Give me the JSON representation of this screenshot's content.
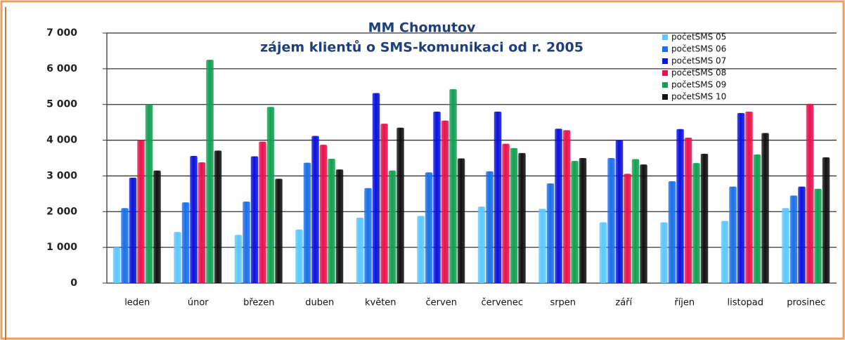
{
  "chart_data": {
    "type": "bar",
    "title": "MM Chomutov",
    "subtitle": "zájem klientů o SMS-komunikaci od r. 2005",
    "categories": [
      "leden",
      "únor",
      "březen",
      "duben",
      "květen",
      "červen",
      "červenec",
      "srpen",
      "září",
      "říjen",
      "listopad",
      "prosinec"
    ],
    "series": [
      {
        "name": "početSMS 05",
        "color": "#5cc8ff",
        "values": [
          1000,
          1430,
          1350,
          1500,
          1830,
          1880,
          2140,
          2080,
          1700,
          1700,
          1740,
          2100
        ]
      },
      {
        "name": "početSMS 06",
        "color": "#1a70e8",
        "values": [
          2100,
          2260,
          2280,
          3370,
          2660,
          3100,
          3130,
          2790,
          3500,
          2850,
          2700,
          2450
        ]
      },
      {
        "name": "početSMS 07",
        "color": "#0a12dc",
        "values": [
          2950,
          3560,
          3550,
          4120,
          5320,
          4800,
          4800,
          4320,
          4000,
          4310,
          4760,
          2700
        ]
      },
      {
        "name": "početSMS 08",
        "color": "#e8124c",
        "values": [
          4000,
          3380,
          3960,
          3870,
          4460,
          4550,
          3900,
          4280,
          3060,
          4070,
          4800,
          5020
        ]
      },
      {
        "name": "početSMS 09",
        "color": "#12a050",
        "values": [
          5000,
          6250,
          4930,
          3480,
          3150,
          5430,
          3780,
          3420,
          3470,
          3360,
          3600,
          2640
        ]
      },
      {
        "name": "početSMS 10",
        "color": "#111111",
        "values": [
          3150,
          3710,
          2920,
          3180,
          4350,
          3490,
          3640,
          3500,
          3320,
          3620,
          4200,
          3520
        ]
      }
    ],
    "ylim": [
      0,
      7000
    ],
    "yticks": [
      0,
      {
        "value": 1000,
        "label": "1 000"
      },
      {
        "value": 2000,
        "label": "2 000"
      },
      {
        "value": 3000,
        "label": "3 000"
      },
      {
        "value": 4000,
        "label": "4 000"
      },
      {
        "value": 5000,
        "label": "5 000"
      },
      {
        "value": 6000,
        "label": "6 000"
      },
      {
        "value": 7000,
        "label": "7 000"
      }
    ],
    "grid": true
  }
}
